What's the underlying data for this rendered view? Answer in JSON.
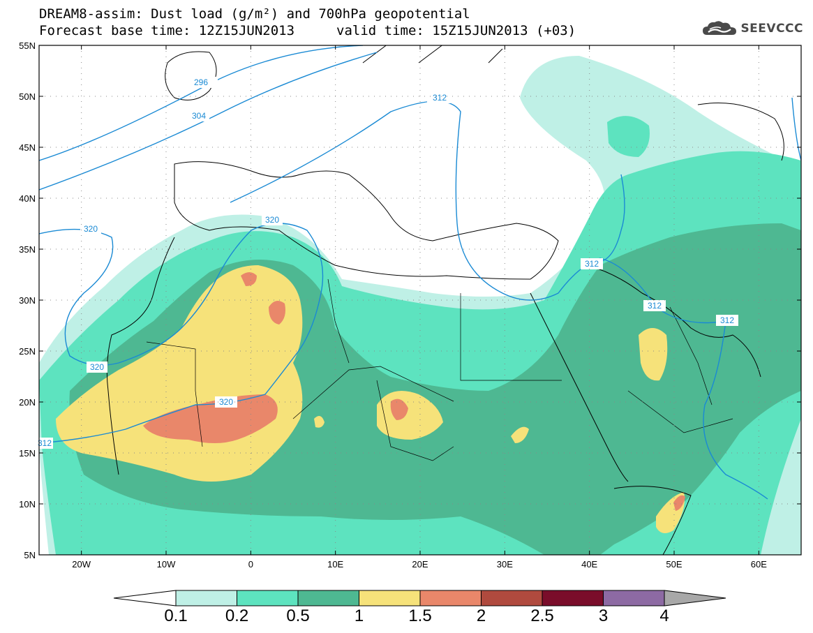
{
  "title": {
    "line1": "DREAM8-assim: Dust load (g/m²) and 700hPa geopotential",
    "line2_left": "Forecast base time: 12Z15JUN2013",
    "line2_right": "valid time: 15Z15JUN2013 (+03)"
  },
  "logo": {
    "text": "SEEVCCC",
    "icon": "cloud-logo-icon"
  },
  "axes": {
    "lat_labels": [
      "55N",
      "50N",
      "45N",
      "40N",
      "35N",
      "30N",
      "25N",
      "20N",
      "15N",
      "10N",
      "5N"
    ],
    "lon_labels": [
      "20W",
      "10W",
      "0",
      "10E",
      "20E",
      "30E",
      "40E",
      "50E",
      "60E"
    ]
  },
  "contour_labels": [
    "296",
    "304",
    "312",
    "320",
    "320",
    "320",
    "320",
    "312",
    "312",
    "312",
    "312"
  ],
  "colorbar": {
    "ticks": [
      "0.1",
      "0.2",
      "0.5",
      "1",
      "1.5",
      "2",
      "2.5",
      "3",
      "4"
    ],
    "colors": [
      "#bff0e6",
      "#5de3bf",
      "#4eb892",
      "#f6e27a",
      "#e9876a",
      "#b04a3e",
      "#7a0d2a",
      "#8d6aa3",
      "#a8a8a8"
    ],
    "under_color": "#ffffff"
  },
  "colors": {
    "contour": "#1a8ad4",
    "level1": "#bff0e6",
    "level2": "#5de3bf",
    "level3": "#4eb892",
    "level4": "#f6e27a",
    "level5": "#e9876a"
  }
}
